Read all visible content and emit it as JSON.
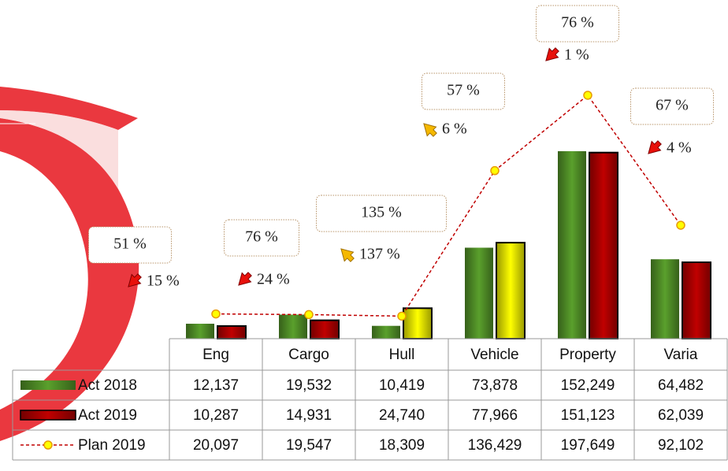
{
  "chart_data": {
    "type": "bar",
    "categories": [
      "Eng",
      "Cargo",
      "Hull",
      "Vehicle",
      "Property",
      "Varia"
    ],
    "series": [
      {
        "name": "Act 2018",
        "color": "#5aa02c",
        "values": [
          12137,
          19532,
          10419,
          73878,
          152249,
          64482
        ],
        "value_labels": [
          "12,137",
          "19,532",
          "10,419",
          "73,878",
          "152,249",
          "64,482"
        ]
      },
      {
        "name": "Act 2019",
        "color": "#c00000",
        "colors": [
          "#c00000",
          "#c00000",
          "#ffff00",
          "#ffff00",
          "#c00000",
          "#c00000"
        ],
        "values": [
          10287,
          14931,
          24740,
          77966,
          151123,
          62039
        ],
        "value_labels": [
          "10,287",
          "14,931",
          "24,740",
          "77,966",
          "151,123",
          "62,039"
        ]
      },
      {
        "name": "Plan 2019",
        "type": "line",
        "color": "#c00000",
        "marker_color": "#ffff00",
        "values": [
          20097,
          19547,
          18309,
          136429,
          197649,
          92102
        ],
        "value_labels": [
          "20,097",
          "19,547",
          "18,309",
          "136,429",
          "197,649",
          "92,102"
        ]
      }
    ],
    "ylim": [
      0,
      275000
    ],
    "annotations": [
      {
        "ratio": "51 %",
        "change": "15 %",
        "direction": "down"
      },
      {
        "ratio": "76 %",
        "change": "24 %",
        "direction": "down"
      },
      {
        "ratio": "135 %",
        "change": "137 %",
        "direction": "up"
      },
      {
        "ratio": "57 %",
        "change": "6 %",
        "direction": "up"
      },
      {
        "ratio": "76 %",
        "change": "1 %",
        "direction": "down"
      },
      {
        "ratio": "67 %",
        "change": "4 %",
        "direction": "down"
      }
    ]
  }
}
